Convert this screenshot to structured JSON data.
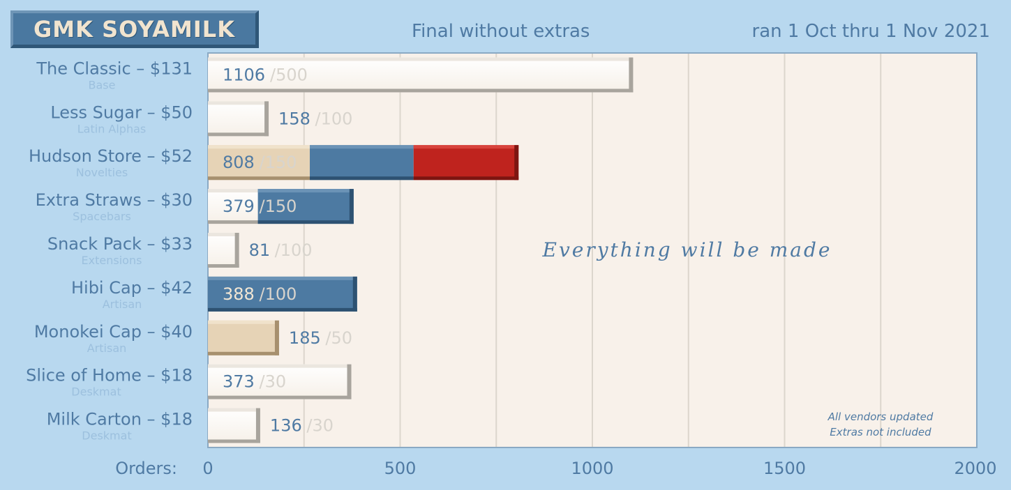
{
  "header": {
    "logo": "GMK SOYAMILK",
    "subtitle": "Final without extras",
    "date_range": "ran 1 Oct thru 1 Nov 2021"
  },
  "chart_data": {
    "type": "bar",
    "orientation": "horizontal",
    "xlabel": "Orders:",
    "xlim": [
      0,
      2000
    ],
    "x_ticks": [
      0,
      500,
      1000,
      1500,
      2000
    ],
    "grid": true,
    "banner": "Everything will be made",
    "notes": [
      "All vendors updated",
      "Extras not included"
    ],
    "colors": {
      "plot_bg": "#f8f1ea",
      "white_bar": "#fdfbf8",
      "tan_bar": "#e6d3b6",
      "blue_bar": "#4d7aa2",
      "red_bar": "#bf231e",
      "value_text_blue": "#4f7aa3",
      "value_text_cream": "#f1e6d4",
      "goal_text": "#d8d4cd"
    },
    "categories": [
      {
        "name": "The Classic – $131",
        "sub": "Base",
        "value": 1106,
        "goal": 500,
        "value_label": "1106",
        "goal_label": "/500",
        "segments": [
          {
            "to": 1106,
            "color": "white_bar"
          }
        ]
      },
      {
        "name": "Less Sugar – $50",
        "sub": "Latin Alphas",
        "value": 158,
        "goal": 100,
        "value_label": "158",
        "goal_label": "/100",
        "segments": [
          {
            "to": 158,
            "color": "white_bar"
          }
        ]
      },
      {
        "name": "Hudson Store – $52",
        "sub": "Novelties",
        "value": 808,
        "goal": 150,
        "value_label": "808",
        "goal_label": "/150",
        "segments": [
          {
            "to": 265,
            "color": "tan_bar"
          },
          {
            "to": 535,
            "color": "blue_bar"
          },
          {
            "to": 808,
            "color": "red_bar"
          }
        ]
      },
      {
        "name": "Extra Straws – $30",
        "sub": "Spacebars",
        "value": 379,
        "goal": 150,
        "value_label": "379",
        "goal_label": "/150",
        "segments": [
          {
            "to": 130,
            "color": "white_bar"
          },
          {
            "to": 379,
            "color": "blue_bar"
          }
        ]
      },
      {
        "name": "Snack Pack – $33",
        "sub": "Extensions",
        "value": 81,
        "goal": 100,
        "value_label": "81",
        "goal_label": "/100",
        "segments": [
          {
            "to": 81,
            "color": "white_bar"
          }
        ]
      },
      {
        "name": "Hibi Cap – $42",
        "sub": "Artisan",
        "value": 388,
        "goal": 100,
        "value_label": "388",
        "goal_label": "/100",
        "segments": [
          {
            "to": 388,
            "color": "blue_bar"
          }
        ]
      },
      {
        "name": "Monokei Cap – $40",
        "sub": "Artisan",
        "value": 185,
        "goal": 50,
        "value_label": "185",
        "goal_label": "/50",
        "segments": [
          {
            "to": 185,
            "color": "tan_bar"
          }
        ]
      },
      {
        "name": "Slice of Home – $18",
        "sub": "Deskmat",
        "value": 373,
        "goal": 30,
        "value_label": "373",
        "goal_label": "/30",
        "segments": [
          {
            "to": 373,
            "color": "white_bar"
          }
        ]
      },
      {
        "name": "Milk Carton – $18",
        "sub": "Deskmat",
        "value": 136,
        "goal": 30,
        "value_label": "136",
        "goal_label": "/30",
        "segments": [
          {
            "to": 136,
            "color": "white_bar"
          }
        ]
      }
    ]
  }
}
